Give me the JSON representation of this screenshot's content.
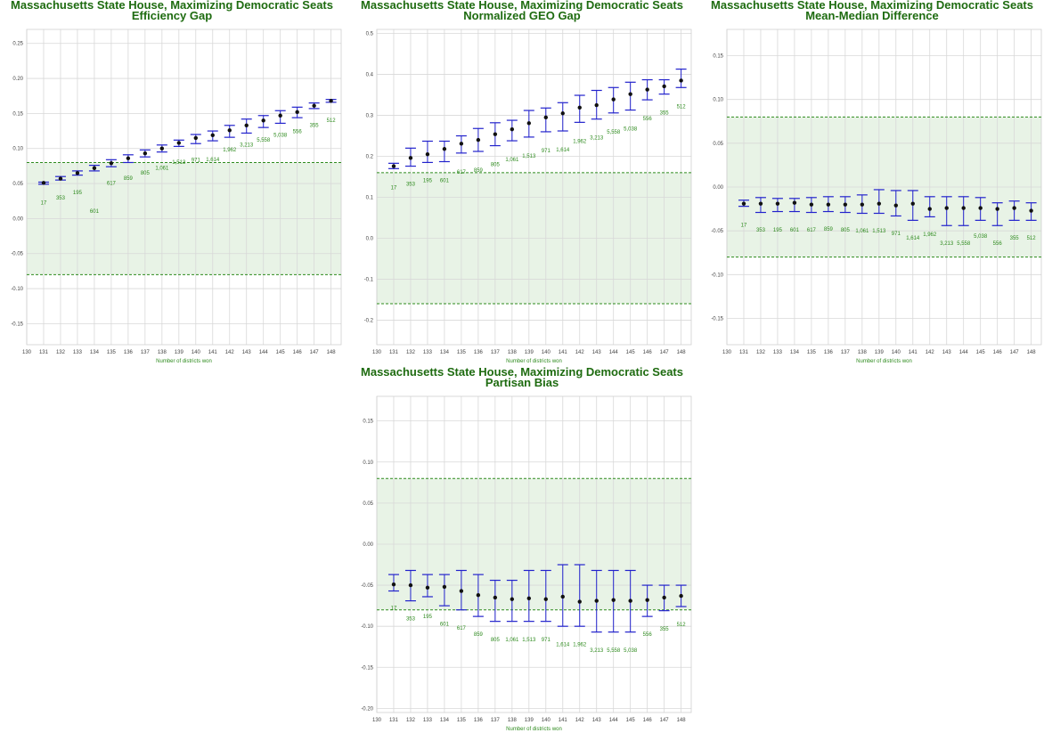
{
  "figure": {
    "xlabel": "Number of districts won",
    "x_ticks": [
      130,
      131,
      132,
      133,
      134,
      135,
      136,
      137,
      138,
      139,
      140,
      141,
      142,
      143,
      144,
      145,
      146,
      147,
      148
    ]
  },
  "colors": {
    "title": "#1e6b10",
    "band_fill": "#e8f3e6",
    "band_line": "#2e8b1e",
    "errorbar": "#2222cc",
    "point": "#111111",
    "count_label": "#2e8b1e",
    "grid": "#d8d8d8"
  },
  "chart_data": [
    {
      "type": "scatter",
      "title": "Massachusetts State House, Maximizing Democratic Seats",
      "subtitle": "Efficiency Gap",
      "xlabel": "Number of districts won",
      "xlim": [
        130,
        148.6
      ],
      "ylim": [
        -0.18,
        0.27
      ],
      "yticks": [
        "0.25",
        "0.20",
        "0.15",
        "0.10",
        "0.05",
        "0.00",
        "-0.05",
        "-0.10",
        "-0.15"
      ],
      "band": [
        -0.08,
        0.08
      ],
      "x": [
        131,
        132,
        133,
        134,
        135,
        136,
        137,
        138,
        139,
        140,
        141,
        142,
        143,
        144,
        145,
        146,
        147,
        148
      ],
      "y": [
        0.051,
        0.057,
        0.065,
        0.072,
        0.079,
        0.086,
        0.093,
        0.1,
        0.108,
        0.115,
        0.119,
        0.126,
        0.133,
        0.14,
        0.147,
        0.152,
        0.161,
        0.168
      ],
      "y_low": [
        0.049,
        0.055,
        0.062,
        0.068,
        0.074,
        0.08,
        0.088,
        0.095,
        0.103,
        0.107,
        0.111,
        0.116,
        0.122,
        0.13,
        0.136,
        0.144,
        0.157,
        0.166
      ],
      "y_high": [
        0.052,
        0.06,
        0.068,
        0.076,
        0.084,
        0.091,
        0.098,
        0.105,
        0.112,
        0.12,
        0.125,
        0.133,
        0.142,
        0.147,
        0.154,
        0.159,
        0.165,
        0.17
      ],
      "counts": [
        "17",
        "353",
        "195",
        "601",
        "617",
        "859",
        "805",
        "1,061",
        "1,513",
        "971",
        "1,614",
        "1,962",
        "3,213",
        "5,558",
        "5,038",
        "556",
        "355",
        "512"
      ],
      "count_y": [
        0.02,
        0.027,
        0.035,
        0.008,
        0.048,
        0.055,
        0.063,
        0.07,
        0.078,
        0.081,
        0.082,
        0.096,
        0.103,
        0.11,
        0.117,
        0.122,
        0.131,
        0.138
      ]
    },
    {
      "type": "scatter",
      "title": "Massachusetts State House, Maximizing Democratic Seats",
      "subtitle": "Normalized GEO Gap",
      "xlabel": "Number of districts won",
      "xlim": [
        130,
        148.6
      ],
      "ylim": [
        -0.26,
        0.51
      ],
      "yticks": [
        "0.5",
        "0.4",
        "0.3",
        "0.2",
        "0.1",
        "0.0",
        "-0.1",
        "-0.2"
      ],
      "band": [
        -0.16,
        0.16
      ],
      "x": [
        131,
        132,
        133,
        134,
        135,
        136,
        137,
        138,
        139,
        140,
        141,
        142,
        143,
        144,
        145,
        146,
        147,
        148
      ],
      "y": [
        0.176,
        0.196,
        0.205,
        0.218,
        0.231,
        0.24,
        0.254,
        0.266,
        0.281,
        0.295,
        0.305,
        0.319,
        0.325,
        0.339,
        0.352,
        0.363,
        0.371,
        0.385
      ],
      "y_low": [
        0.17,
        0.176,
        0.185,
        0.187,
        0.208,
        0.212,
        0.226,
        0.238,
        0.247,
        0.26,
        0.262,
        0.283,
        0.291,
        0.306,
        0.313,
        0.338,
        0.352,
        0.368
      ],
      "y_high": [
        0.183,
        0.22,
        0.237,
        0.237,
        0.25,
        0.268,
        0.282,
        0.288,
        0.312,
        0.318,
        0.331,
        0.349,
        0.361,
        0.368,
        0.381,
        0.387,
        0.387,
        0.413
      ],
      "counts": [
        "17",
        "353",
        "195",
        "601",
        "617",
        "859",
        "805",
        "1,061",
        "1,513",
        "971",
        "1,614",
        "1,962",
        "3,213",
        "5,558",
        "5,038",
        "556",
        "355",
        "512"
      ],
      "count_y": [
        0.12,
        0.128,
        0.137,
        0.137,
        0.158,
        0.162,
        0.176,
        0.188,
        0.197,
        0.21,
        0.212,
        0.233,
        0.241,
        0.256,
        0.263,
        0.288,
        0.302,
        0.318
      ]
    },
    {
      "type": "scatter",
      "title": "Massachusetts State House, Maximizing Democratic Seats",
      "subtitle": "Mean-Median Difference",
      "xlabel": "Number of districts won",
      "xlim": [
        130,
        148.6
      ],
      "ylim": [
        -0.18,
        0.18
      ],
      "yticks": [
        "0.15",
        "0.10",
        "0.05",
        "0.00",
        "-0.05",
        "-0.10",
        "-0.15"
      ],
      "band": [
        -0.08,
        0.08
      ],
      "x": [
        131,
        132,
        133,
        134,
        135,
        136,
        137,
        138,
        139,
        140,
        141,
        142,
        143,
        144,
        145,
        146,
        147,
        148
      ],
      "y": [
        -0.019,
        -0.019,
        -0.019,
        -0.018,
        -0.02,
        -0.02,
        -0.02,
        -0.02,
        -0.019,
        -0.021,
        -0.019,
        -0.025,
        -0.024,
        -0.024,
        -0.024,
        -0.025,
        -0.024,
        -0.027
      ],
      "y_low": [
        -0.022,
        -0.029,
        -0.028,
        -0.028,
        -0.029,
        -0.028,
        -0.029,
        -0.03,
        -0.03,
        -0.033,
        -0.038,
        -0.034,
        -0.044,
        -0.044,
        -0.038,
        -0.044,
        -0.038,
        -0.038
      ],
      "y_high": [
        -0.015,
        -0.012,
        -0.013,
        -0.013,
        -0.012,
        -0.011,
        -0.011,
        -0.009,
        -0.003,
        -0.004,
        -0.004,
        -0.011,
        -0.011,
        -0.011,
        -0.012,
        -0.018,
        -0.016,
        -0.018
      ],
      "counts": [
        "17",
        "353",
        "195",
        "601",
        "617",
        "859",
        "805",
        "1,061",
        "1,513",
        "971",
        "1,614",
        "1,962",
        "3,213",
        "5,558",
        "5,038",
        "556",
        "355",
        "512"
      ],
      "count_y": [
        -0.045,
        -0.051,
        -0.051,
        -0.051,
        -0.051,
        -0.05,
        -0.051,
        -0.052,
        -0.052,
        -0.055,
        -0.06,
        -0.056,
        -0.066,
        -0.066,
        -0.058,
        -0.066,
        -0.06,
        -0.06
      ]
    },
    {
      "type": "scatter",
      "title": "Massachusetts State House, Maximizing Democratic Seats",
      "subtitle": "Partisan Bias",
      "xlabel": "Number of districts won",
      "xlim": [
        130,
        148.6
      ],
      "ylim": [
        -0.205,
        0.18
      ],
      "yticks": [
        "0.15",
        "0.10",
        "0.05",
        "0.00",
        "-0.05",
        "-0.10",
        "-0.15",
        "-0.20"
      ],
      "band": [
        -0.08,
        0.08
      ],
      "x": [
        131,
        132,
        133,
        134,
        135,
        136,
        137,
        138,
        139,
        140,
        141,
        142,
        143,
        144,
        145,
        146,
        147,
        148
      ],
      "y": [
        -0.049,
        -0.05,
        -0.053,
        -0.052,
        -0.057,
        -0.062,
        -0.065,
        -0.067,
        -0.066,
        -0.067,
        -0.064,
        -0.07,
        -0.069,
        -0.068,
        -0.069,
        -0.068,
        -0.065,
        -0.063
      ],
      "y_low": [
        -0.057,
        -0.069,
        -0.064,
        -0.075,
        -0.08,
        -0.088,
        -0.094,
        -0.094,
        -0.094,
        -0.094,
        -0.1,
        -0.1,
        -0.107,
        -0.107,
        -0.107,
        -0.088,
        -0.081,
        -0.076
      ],
      "y_high": [
        -0.037,
        -0.032,
        -0.037,
        -0.037,
        -0.032,
        -0.037,
        -0.044,
        -0.044,
        -0.032,
        -0.032,
        -0.025,
        -0.025,
        -0.032,
        -0.032,
        -0.032,
        -0.05,
        -0.05,
        -0.05
      ],
      "counts": [
        "17",
        "353",
        "195",
        "601",
        "617",
        "859",
        "805",
        "1,061",
        "1,513",
        "971",
        "1,614",
        "1,962",
        "3,213",
        "5,558",
        "5,038",
        "556",
        "355",
        "512"
      ],
      "count_y": [
        -0.08,
        -0.093,
        -0.09,
        -0.099,
        -0.104,
        -0.112,
        -0.118,
        -0.118,
        -0.118,
        -0.118,
        -0.124,
        -0.124,
        -0.131,
        -0.131,
        -0.131,
        -0.112,
        -0.105,
        -0.1
      ]
    }
  ]
}
